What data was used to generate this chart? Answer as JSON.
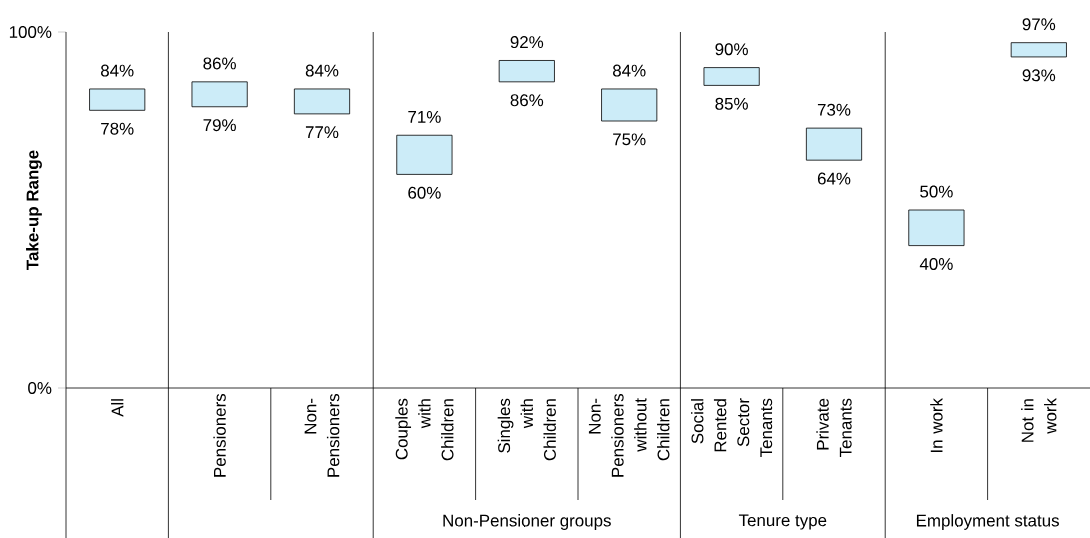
{
  "chart_data": {
    "type": "bar",
    "ylabel": "Take-up Range",
    "categories": [
      "All",
      "Pensioners",
      "Non-Pensioners",
      "Couples with Children",
      "Singles with Children",
      "Non-Pensioners without Children",
      "Social Rented Sector Tenants",
      "Private Tenants",
      "In work",
      "Not in work"
    ],
    "base": [
      78,
      79,
      77,
      60,
      86,
      75,
      85,
      64,
      40,
      93
    ],
    "values": [
      6,
      7,
      7,
      11,
      6,
      9,
      5,
      9,
      10,
      4
    ],
    "color": "#ccecf8",
    "ylim": [
      0,
      100
    ],
    "yticks": [
      {
        "value": 0,
        "label": "0%"
      },
      {
        "value": 100,
        "label": "100%"
      }
    ],
    "annotations": [
      {
        "text": "84%",
        "x": "All",
        "y": 84
      },
      {
        "text": "78%",
        "x": "All",
        "y": 78
      },
      {
        "text": "86%",
        "x": "Pensioners",
        "y": 86
      },
      {
        "text": "79%",
        "x": "Pensioners",
        "y": 79
      },
      {
        "text": "84%",
        "x": "Non-Pensioners",
        "y": 84
      },
      {
        "text": "77%",
        "x": "Non-Pensioners",
        "y": 77
      },
      {
        "text": "71%",
        "x": "Couples with Children",
        "y": 71
      },
      {
        "text": "60%",
        "x": "Couples with Children",
        "y": 60
      },
      {
        "text": "92%",
        "x": "Singles with Children",
        "y": 92
      },
      {
        "text": "86%",
        "x": "Singles with Children",
        "y": 86
      },
      {
        "text": "84%",
        "x": "Non-Pensioners without Children",
        "y": 84
      },
      {
        "text": "75%",
        "x": "Non-Pensioners without Children",
        "y": 75
      },
      {
        "text": "90%",
        "x": "Social Rented Sector Tenants",
        "y": 90
      },
      {
        "text": "85%",
        "x": "Social Rented Sector Tenants",
        "y": 85
      },
      {
        "text": "73%",
        "x": "Private Tenants",
        "y": 73
      },
      {
        "text": "64%",
        "x": "Private Tenants",
        "y": 64
      },
      {
        "text": "50%",
        "x": "In work",
        "y": 50
      },
      {
        "text": "40%",
        "x": "In work",
        "y": 40
      },
      {
        "text": "97%",
        "x": "Not in work",
        "y": 97
      },
      {
        "text": "93%",
        "x": "Not in work",
        "y": 93
      },
      "Non-Pensioner groups",
      "Tenure type",
      "Employment status"
    ]
  }
}
